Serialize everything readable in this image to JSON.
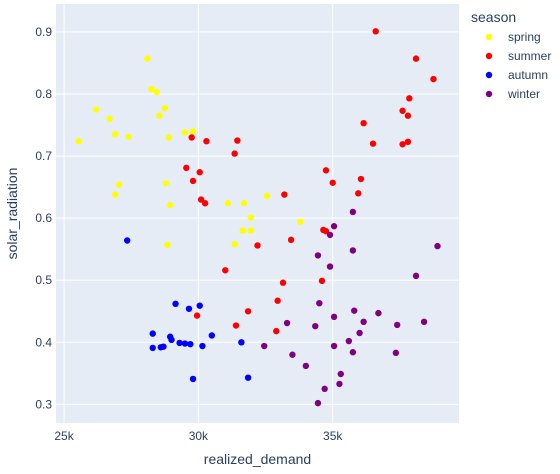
{
  "chart_data": {
    "type": "scatter",
    "xlabel": "realized_demand",
    "ylabel": "solar_radiation",
    "xlim": [
      24700,
      39700
    ],
    "ylim": [
      0.27,
      0.945
    ],
    "x_ticks": [
      25000,
      30000,
      35000
    ],
    "x_tick_labels": [
      "25k",
      "30k",
      "35k"
    ],
    "y_ticks": [
      0.3,
      0.4,
      0.5,
      0.6,
      0.7,
      0.8,
      0.9
    ],
    "y_tick_labels": [
      "0.3",
      "0.4",
      "0.5",
      "0.6",
      "0.7",
      "0.8",
      "0.9"
    ],
    "grid": true,
    "plot_background": "#e5ecf6",
    "legend": {
      "title": "season",
      "position": "top-right"
    },
    "series": [
      {
        "name": "spring",
        "color": "#ffff00",
        "points": [
          [
            28100,
            0.857
          ],
          [
            28250,
            0.808
          ],
          [
            28450,
            0.803
          ],
          [
            28550,
            0.765
          ],
          [
            28750,
            0.777
          ],
          [
            26200,
            0.775
          ],
          [
            26700,
            0.76
          ],
          [
            25550,
            0.724
          ],
          [
            26900,
            0.735
          ],
          [
            27400,
            0.731
          ],
          [
            28900,
            0.73
          ],
          [
            29500,
            0.738
          ],
          [
            29800,
            0.74
          ],
          [
            27050,
            0.654
          ],
          [
            26900,
            0.638
          ],
          [
            28800,
            0.656
          ],
          [
            28950,
            0.621
          ],
          [
            31100,
            0.624
          ],
          [
            31700,
            0.624
          ],
          [
            31950,
            0.601
          ],
          [
            32550,
            0.636
          ],
          [
            33800,
            0.594
          ],
          [
            31350,
            0.558
          ],
          [
            31650,
            0.58
          ],
          [
            31950,
            0.58
          ],
          [
            28850,
            0.557
          ]
        ]
      },
      {
        "name": "summer",
        "color": "#ff0000",
        "points": [
          [
            36600,
            0.901
          ],
          [
            38100,
            0.857
          ],
          [
            38750,
            0.824
          ],
          [
            37850,
            0.793
          ],
          [
            36150,
            0.753
          ],
          [
            37600,
            0.773
          ],
          [
            37800,
            0.765
          ],
          [
            36500,
            0.72
          ],
          [
            37600,
            0.719
          ],
          [
            37800,
            0.723
          ],
          [
            29750,
            0.73
          ],
          [
            30300,
            0.724
          ],
          [
            31450,
            0.725
          ],
          [
            31350,
            0.704
          ],
          [
            29550,
            0.681
          ],
          [
            30050,
            0.674
          ],
          [
            29800,
            0.66
          ],
          [
            34750,
            0.677
          ],
          [
            35000,
            0.657
          ],
          [
            36050,
            0.663
          ],
          [
            35950,
            0.64
          ],
          [
            33200,
            0.638
          ],
          [
            30100,
            0.63
          ],
          [
            30250,
            0.624
          ],
          [
            32200,
            0.556
          ],
          [
            33450,
            0.565
          ],
          [
            34650,
            0.581
          ],
          [
            34750,
            0.579
          ],
          [
            31000,
            0.516
          ],
          [
            33150,
            0.496
          ],
          [
            34600,
            0.499
          ],
          [
            32950,
            0.467
          ],
          [
            31850,
            0.45
          ],
          [
            29950,
            0.443
          ],
          [
            31400,
            0.427
          ],
          [
            32900,
            0.418
          ]
        ]
      },
      {
        "name": "autumn",
        "color": "#0000ff",
        "points": [
          [
            27350,
            0.564
          ],
          [
            29150,
            0.462
          ],
          [
            29650,
            0.454
          ],
          [
            30050,
            0.459
          ],
          [
            28300,
            0.414
          ],
          [
            28950,
            0.409
          ],
          [
            29000,
            0.404
          ],
          [
            29300,
            0.399
          ],
          [
            29500,
            0.398
          ],
          [
            29700,
            0.397
          ],
          [
            30150,
            0.394
          ],
          [
            30500,
            0.411
          ],
          [
            31600,
            0.4
          ],
          [
            28300,
            0.391
          ],
          [
            28600,
            0.392
          ],
          [
            28700,
            0.393
          ],
          [
            29800,
            0.341
          ],
          [
            31850,
            0.343
          ]
        ]
      },
      {
        "name": "winter",
        "color": "#800080",
        "points": [
          [
            35750,
            0.61
          ],
          [
            35050,
            0.587
          ],
          [
            34900,
            0.573
          ],
          [
            34450,
            0.54
          ],
          [
            35750,
            0.548
          ],
          [
            38900,
            0.555
          ],
          [
            34900,
            0.522
          ],
          [
            38100,
            0.507
          ],
          [
            34500,
            0.463
          ],
          [
            35800,
            0.451
          ],
          [
            35050,
            0.441
          ],
          [
            36700,
            0.447
          ],
          [
            36150,
            0.433
          ],
          [
            37400,
            0.428
          ],
          [
            38400,
            0.433
          ],
          [
            33300,
            0.431
          ],
          [
            34350,
            0.426
          ],
          [
            36000,
            0.415
          ],
          [
            35600,
            0.402
          ],
          [
            35050,
            0.394
          ],
          [
            32450,
            0.394
          ],
          [
            33500,
            0.38
          ],
          [
            35750,
            0.384
          ],
          [
            37350,
            0.383
          ],
          [
            34000,
            0.362
          ],
          [
            35300,
            0.349
          ],
          [
            34700,
            0.325
          ],
          [
            35250,
            0.333
          ],
          [
            34450,
            0.302
          ]
        ]
      }
    ]
  }
}
